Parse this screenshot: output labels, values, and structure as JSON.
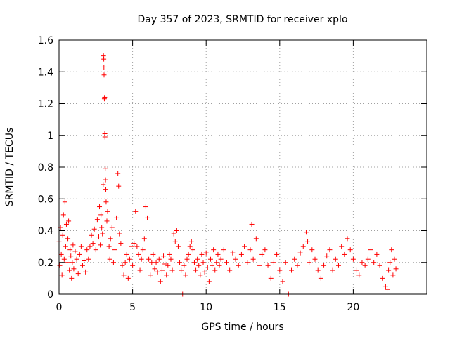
{
  "chart_data": {
    "type": "scatter",
    "title": "Day 357 of 2023, SRMTID for receiver xplo",
    "xlabel": "GPS time / hours",
    "ylabel": "SRMTID / TECUs",
    "xlim": [
      0,
      25
    ],
    "ylim": [
      0,
      1.6
    ],
    "xticks": [
      0,
      5,
      10,
      15,
      20
    ],
    "xtick_labels": [
      "0",
      "5",
      "10",
      "15",
      "20"
    ],
    "yticks": [
      0,
      0.2,
      0.4,
      0.6,
      0.8,
      1.0,
      1.2,
      1.4,
      1.6
    ],
    "ytick_labels": [
      "0",
      "0.2",
      "0.4",
      "0.6",
      "0.8",
      "1",
      "1.2",
      "1.4",
      "1.6"
    ],
    "grid": true,
    "marker": "+",
    "color": "#ff0000",
    "series": [
      {
        "name": "SRMTID",
        "points": [
          [
            0.0,
            0.33
          ],
          [
            0.05,
            0.18
          ],
          [
            0.1,
            0.42
          ],
          [
            0.15,
            0.25
          ],
          [
            0.2,
            0.12
          ],
          [
            0.25,
            0.37
          ],
          [
            0.3,
            0.5
          ],
          [
            0.35,
            0.22
          ],
          [
            0.4,
            0.58
          ],
          [
            0.45,
            0.3
          ],
          [
            0.5,
            0.44
          ],
          [
            0.55,
            0.2
          ],
          [
            0.6,
            0.35
          ],
          [
            0.65,
            0.46
          ],
          [
            0.7,
            0.15
          ],
          [
            0.75,
            0.28
          ],
          [
            0.8,
            0.24
          ],
          [
            0.85,
            0.1
          ],
          [
            0.9,
            0.2
          ],
          [
            0.95,
            0.31
          ],
          [
            1.0,
            0.16
          ],
          [
            1.1,
            0.27
          ],
          [
            1.2,
            0.22
          ],
          [
            1.3,
            0.13
          ],
          [
            1.4,
            0.25
          ],
          [
            1.5,
            0.3
          ],
          [
            1.6,
            0.18
          ],
          [
            1.7,
            0.21
          ],
          [
            1.8,
            0.14
          ],
          [
            1.9,
            0.28
          ],
          [
            2.0,
            0.22
          ],
          [
            2.1,
            0.3
          ],
          [
            2.2,
            0.37
          ],
          [
            2.3,
            0.32
          ],
          [
            2.4,
            0.41
          ],
          [
            2.5,
            0.28
          ],
          [
            2.6,
            0.47
          ],
          [
            2.7,
            0.36
          ],
          [
            2.75,
            0.55
          ],
          [
            2.8,
            0.31
          ],
          [
            2.85,
            0.5
          ],
          [
            2.9,
            0.42
          ],
          [
            2.95,
            0.38
          ],
          [
            3.0,
            0.69
          ],
          [
            3.02,
            1.5
          ],
          [
            3.04,
            1.48
          ],
          [
            3.06,
            1.38
          ],
          [
            3.05,
            1.43
          ],
          [
            3.08,
            1.23
          ],
          [
            3.1,
            1.24
          ],
          [
            3.11,
            1.01
          ],
          [
            3.12,
            0.99
          ],
          [
            3.14,
            0.79
          ],
          [
            3.16,
            0.72
          ],
          [
            3.18,
            0.66
          ],
          [
            3.2,
            0.58
          ],
          [
            3.25,
            0.46
          ],
          [
            3.3,
            0.52
          ],
          [
            3.4,
            0.3
          ],
          [
            3.45,
            0.22
          ],
          [
            3.5,
            0.35
          ],
          [
            3.6,
            0.42
          ],
          [
            3.7,
            0.2
          ],
          [
            3.8,
            0.28
          ],
          [
            3.9,
            0.48
          ],
          [
            4.0,
            0.76
          ],
          [
            4.05,
            0.68
          ],
          [
            4.1,
            0.38
          ],
          [
            4.2,
            0.32
          ],
          [
            4.3,
            0.18
          ],
          [
            4.4,
            0.12
          ],
          [
            4.5,
            0.2
          ],
          [
            4.6,
            0.25
          ],
          [
            4.7,
            0.1
          ],
          [
            4.8,
            0.22
          ],
          [
            4.9,
            0.3
          ],
          [
            5.0,
            0.18
          ],
          [
            5.1,
            0.32
          ],
          [
            5.2,
            0.52
          ],
          [
            5.3,
            0.3
          ],
          [
            5.4,
            0.25
          ],
          [
            5.5,
            0.15
          ],
          [
            5.6,
            0.22
          ],
          [
            5.7,
            0.28
          ],
          [
            5.8,
            0.35
          ],
          [
            5.9,
            0.55
          ],
          [
            6.0,
            0.48
          ],
          [
            6.1,
            0.22
          ],
          [
            6.2,
            0.12
          ],
          [
            6.3,
            0.2
          ],
          [
            6.4,
            0.25
          ],
          [
            6.5,
            0.16
          ],
          [
            6.6,
            0.2
          ],
          [
            6.7,
            0.14
          ],
          [
            6.8,
            0.22
          ],
          [
            6.9,
            0.08
          ],
          [
            7.0,
            0.15
          ],
          [
            7.1,
            0.24
          ],
          [
            7.2,
            0.19
          ],
          [
            7.3,
            0.12
          ],
          [
            7.4,
            0.18
          ],
          [
            7.5,
            0.25
          ],
          [
            7.6,
            0.22
          ],
          [
            7.7,
            0.15
          ],
          [
            7.8,
            0.38
          ],
          [
            7.9,
            0.33
          ],
          [
            8.0,
            0.4
          ],
          [
            8.1,
            0.3
          ],
          [
            8.2,
            0.2
          ],
          [
            8.3,
            0.15
          ],
          [
            8.4,
            0.0
          ],
          [
            8.5,
            0.18
          ],
          [
            8.6,
            0.12
          ],
          [
            8.7,
            0.22
          ],
          [
            8.8,
            0.25
          ],
          [
            8.9,
            0.3
          ],
          [
            9.0,
            0.33
          ],
          [
            9.1,
            0.28
          ],
          [
            9.2,
            0.2
          ],
          [
            9.3,
            0.15
          ],
          [
            9.4,
            0.22
          ],
          [
            9.5,
            0.18
          ],
          [
            9.6,
            0.12
          ],
          [
            9.7,
            0.25
          ],
          [
            9.8,
            0.2
          ],
          [
            9.9,
            0.14
          ],
          [
            10.0,
            0.26
          ],
          [
            10.1,
            0.17
          ],
          [
            10.2,
            0.08
          ],
          [
            10.3,
            0.22
          ],
          [
            10.4,
            0.18
          ],
          [
            10.5,
            0.28
          ],
          [
            10.6,
            0.15
          ],
          [
            10.7,
            0.2
          ],
          [
            10.8,
            0.25
          ],
          [
            10.9,
            0.18
          ],
          [
            11.0,
            0.22
          ],
          [
            11.2,
            0.28
          ],
          [
            11.4,
            0.2
          ],
          [
            11.6,
            0.15
          ],
          [
            11.8,
            0.26
          ],
          [
            12.0,
            0.22
          ],
          [
            12.2,
            0.18
          ],
          [
            12.4,
            0.25
          ],
          [
            12.6,
            0.3
          ],
          [
            12.8,
            0.2
          ],
          [
            13.0,
            0.28
          ],
          [
            13.1,
            0.44
          ],
          [
            13.2,
            0.22
          ],
          [
            13.4,
            0.35
          ],
          [
            13.6,
            0.18
          ],
          [
            13.8,
            0.25
          ],
          [
            14.0,
            0.28
          ],
          [
            14.2,
            0.18
          ],
          [
            14.4,
            0.1
          ],
          [
            14.6,
            0.2
          ],
          [
            14.8,
            0.25
          ],
          [
            15.0,
            0.15
          ],
          [
            15.2,
            0.08
          ],
          [
            15.4,
            0.2
          ],
          [
            15.6,
            0.0
          ],
          [
            15.8,
            0.15
          ],
          [
            16.0,
            0.22
          ],
          [
            16.2,
            0.18
          ],
          [
            16.4,
            0.26
          ],
          [
            16.6,
            0.3
          ],
          [
            16.8,
            0.39
          ],
          [
            16.9,
            0.33
          ],
          [
            17.0,
            0.2
          ],
          [
            17.2,
            0.28
          ],
          [
            17.4,
            0.22
          ],
          [
            17.6,
            0.15
          ],
          [
            17.8,
            0.1
          ],
          [
            18.0,
            0.18
          ],
          [
            18.2,
            0.24
          ],
          [
            18.4,
            0.28
          ],
          [
            18.6,
            0.15
          ],
          [
            18.8,
            0.22
          ],
          [
            19.0,
            0.18
          ],
          [
            19.2,
            0.3
          ],
          [
            19.4,
            0.25
          ],
          [
            19.6,
            0.35
          ],
          [
            19.8,
            0.28
          ],
          [
            20.0,
            0.22
          ],
          [
            20.2,
            0.15
          ],
          [
            20.4,
            0.12
          ],
          [
            20.6,
            0.2
          ],
          [
            20.8,
            0.18
          ],
          [
            21.0,
            0.22
          ],
          [
            21.2,
            0.28
          ],
          [
            21.4,
            0.2
          ],
          [
            21.6,
            0.25
          ],
          [
            21.8,
            0.18
          ],
          [
            22.0,
            0.1
          ],
          [
            22.2,
            0.05
          ],
          [
            22.3,
            0.03
          ],
          [
            22.4,
            0.15
          ],
          [
            22.5,
            0.2
          ],
          [
            22.6,
            0.28
          ],
          [
            22.7,
            0.12
          ],
          [
            22.8,
            0.22
          ],
          [
            22.9,
            0.16
          ]
        ]
      }
    ]
  }
}
